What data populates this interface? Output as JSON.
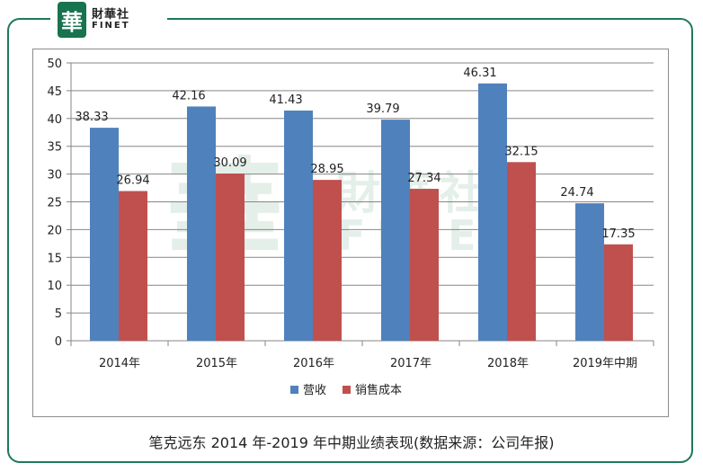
{
  "logo": {
    "mark": "華",
    "name_cn": "財華社",
    "name_en": "FINET"
  },
  "watermark": {
    "mark": "華",
    "name_cn": "財華社",
    "name_en": "FINET"
  },
  "caption": "笔克远东 2014 年-2019 年中期业绩表现(数据来源：公司年报)",
  "colors": {
    "revenue": "#4f81bd",
    "cost": "#c0504d",
    "frame": "#1e7a57",
    "grid": "#868686"
  },
  "chart_data": {
    "type": "bar",
    "title": "",
    "xlabel": "",
    "ylabel": "",
    "ylim": [
      0,
      50
    ],
    "yticks": [
      0,
      5,
      10,
      15,
      20,
      25,
      30,
      35,
      40,
      45,
      50
    ],
    "grid": true,
    "legend_position": "bottom",
    "categories": [
      "2014年",
      "2015年",
      "2016年",
      "2017年",
      "2018年",
      "2019年中期"
    ],
    "series": [
      {
        "name": "营收",
        "values": [
          38.33,
          42.16,
          41.43,
          39.79,
          46.31,
          24.74
        ]
      },
      {
        "name": "销售成本",
        "values": [
          26.94,
          30.09,
          28.95,
          27.34,
          32.15,
          17.35
        ]
      }
    ],
    "data_labels": true
  }
}
